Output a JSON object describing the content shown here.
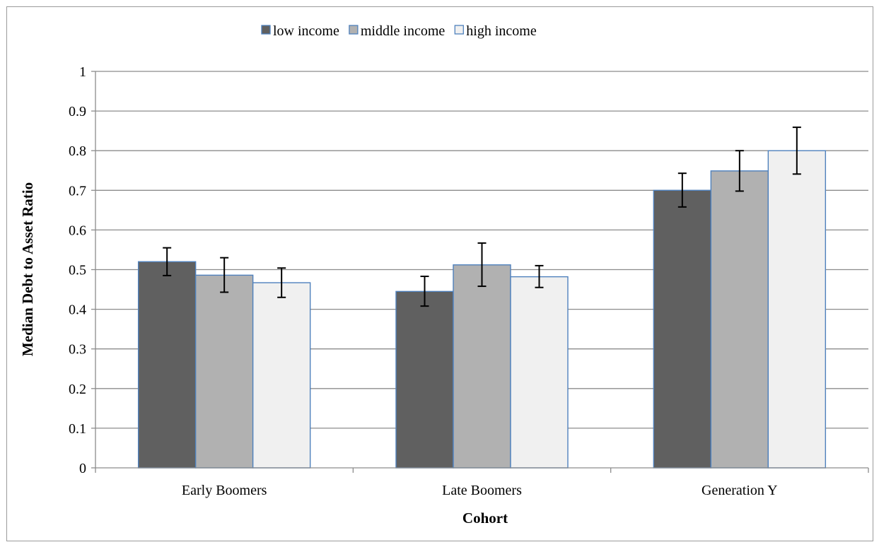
{
  "chart_data": {
    "type": "bar",
    "xlabel": "Cohort",
    "ylabel": "Median Debt to Asset Ratio",
    "ylim": [
      0,
      1
    ],
    "yticks": [
      "0",
      "0.1",
      "0.2",
      "0.3",
      "0.4",
      "0.5",
      "0.6",
      "0.7",
      "0.8",
      "0.9",
      "1"
    ],
    "grid": true,
    "legend_position": "top",
    "categories": [
      "Early Boomers",
      "Late Boomers",
      "Generation Y"
    ],
    "series": [
      {
        "name": "low income",
        "color": "#606060",
        "values": [
          0.52,
          0.445,
          0.7
        ],
        "error_low": [
          0.485,
          0.408,
          0.658
        ],
        "error_high": [
          0.555,
          0.483,
          0.743
        ]
      },
      {
        "name": "middle income",
        "color": "#b1b1b1",
        "values": [
          0.486,
          0.512,
          0.749
        ],
        "error_low": [
          0.443,
          0.458,
          0.698
        ],
        "error_high": [
          0.53,
          0.567,
          0.8
        ]
      },
      {
        "name": "high income",
        "color": "#f0f0f0",
        "values": [
          0.467,
          0.482,
          0.8
        ],
        "error_low": [
          0.43,
          0.455,
          0.741
        ],
        "error_high": [
          0.504,
          0.51,
          0.859
        ]
      }
    ]
  }
}
